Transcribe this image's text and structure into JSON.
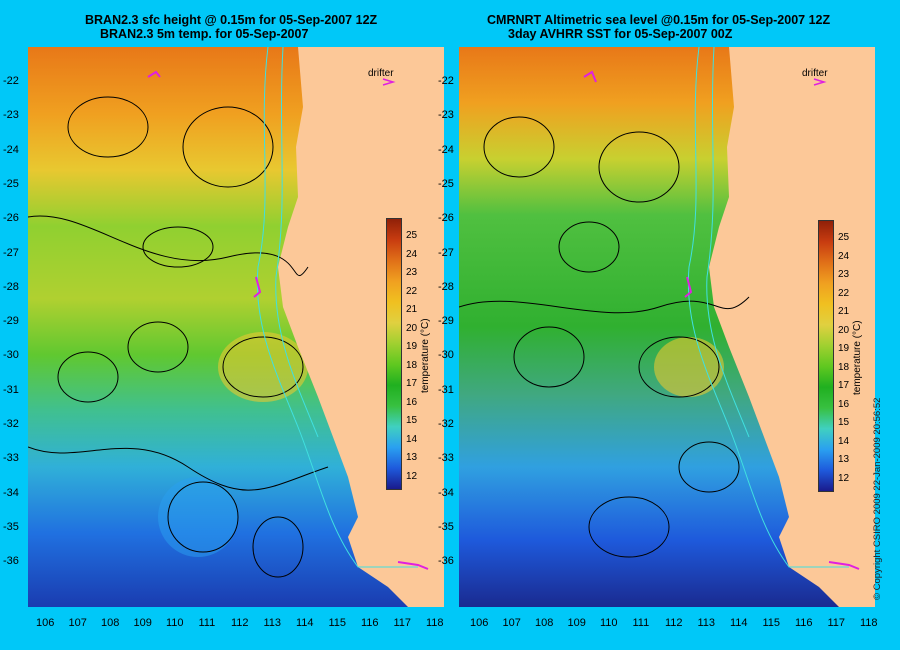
{
  "panels": [
    {
      "title_line1": "BRAN2.3 sfc height @ 0.15m for 05-Sep-2007 12Z",
      "title_line2": "BRAN2.3 5m temp. for 05-Sep-2007",
      "drifter_label": "drifter"
    },
    {
      "title_line1": "CMRNRT Altimetric sea level  @0.15m  for 05-Sep-2007 12Z",
      "title_line2": "3day AVHRR SST for 05-Sep-2007 00Z",
      "drifter_label": "drifter"
    }
  ],
  "axes": {
    "lat_ticks": [
      "-22",
      "-23",
      "-24",
      "-25",
      "-26",
      "-27",
      "-28",
      "-29",
      "-30",
      "-31",
      "-32",
      "-33",
      "-34",
      "-35",
      "-36"
    ],
    "lon_ticks": [
      "106",
      "107",
      "108",
      "109",
      "110",
      "111",
      "112",
      "113",
      "114",
      "115",
      "116",
      "117",
      "118"
    ],
    "lat_range": [
      -36.6,
      -21.4
    ],
    "lon_range": [
      105.6,
      118.3
    ]
  },
  "colorbar": {
    "labels": [
      "25",
      "24",
      "23",
      "22",
      "21",
      "20",
      "19",
      "18",
      "17",
      "16",
      "15",
      "14",
      "13",
      "12"
    ],
    "title": "temperature (°C)",
    "range": [
      11.5,
      26
    ],
    "colors": [
      "#1a1a8c",
      "#1e5adc",
      "#2aa0f0",
      "#40d0c0",
      "#38c040",
      "#20b020",
      "#60c820",
      "#a0d030",
      "#e0d040",
      "#f0c020",
      "#f0a020",
      "#e07018",
      "#c83c10",
      "#902008"
    ]
  },
  "copyright": "© Copyright CSIRO 2009   22-Jan-2009 20:56:52",
  "colors": {
    "background": "#00c8f8",
    "land": "#fcc898",
    "contour": "#000000",
    "isobath": "#40e0e0",
    "drifter": "#e020e0"
  }
}
